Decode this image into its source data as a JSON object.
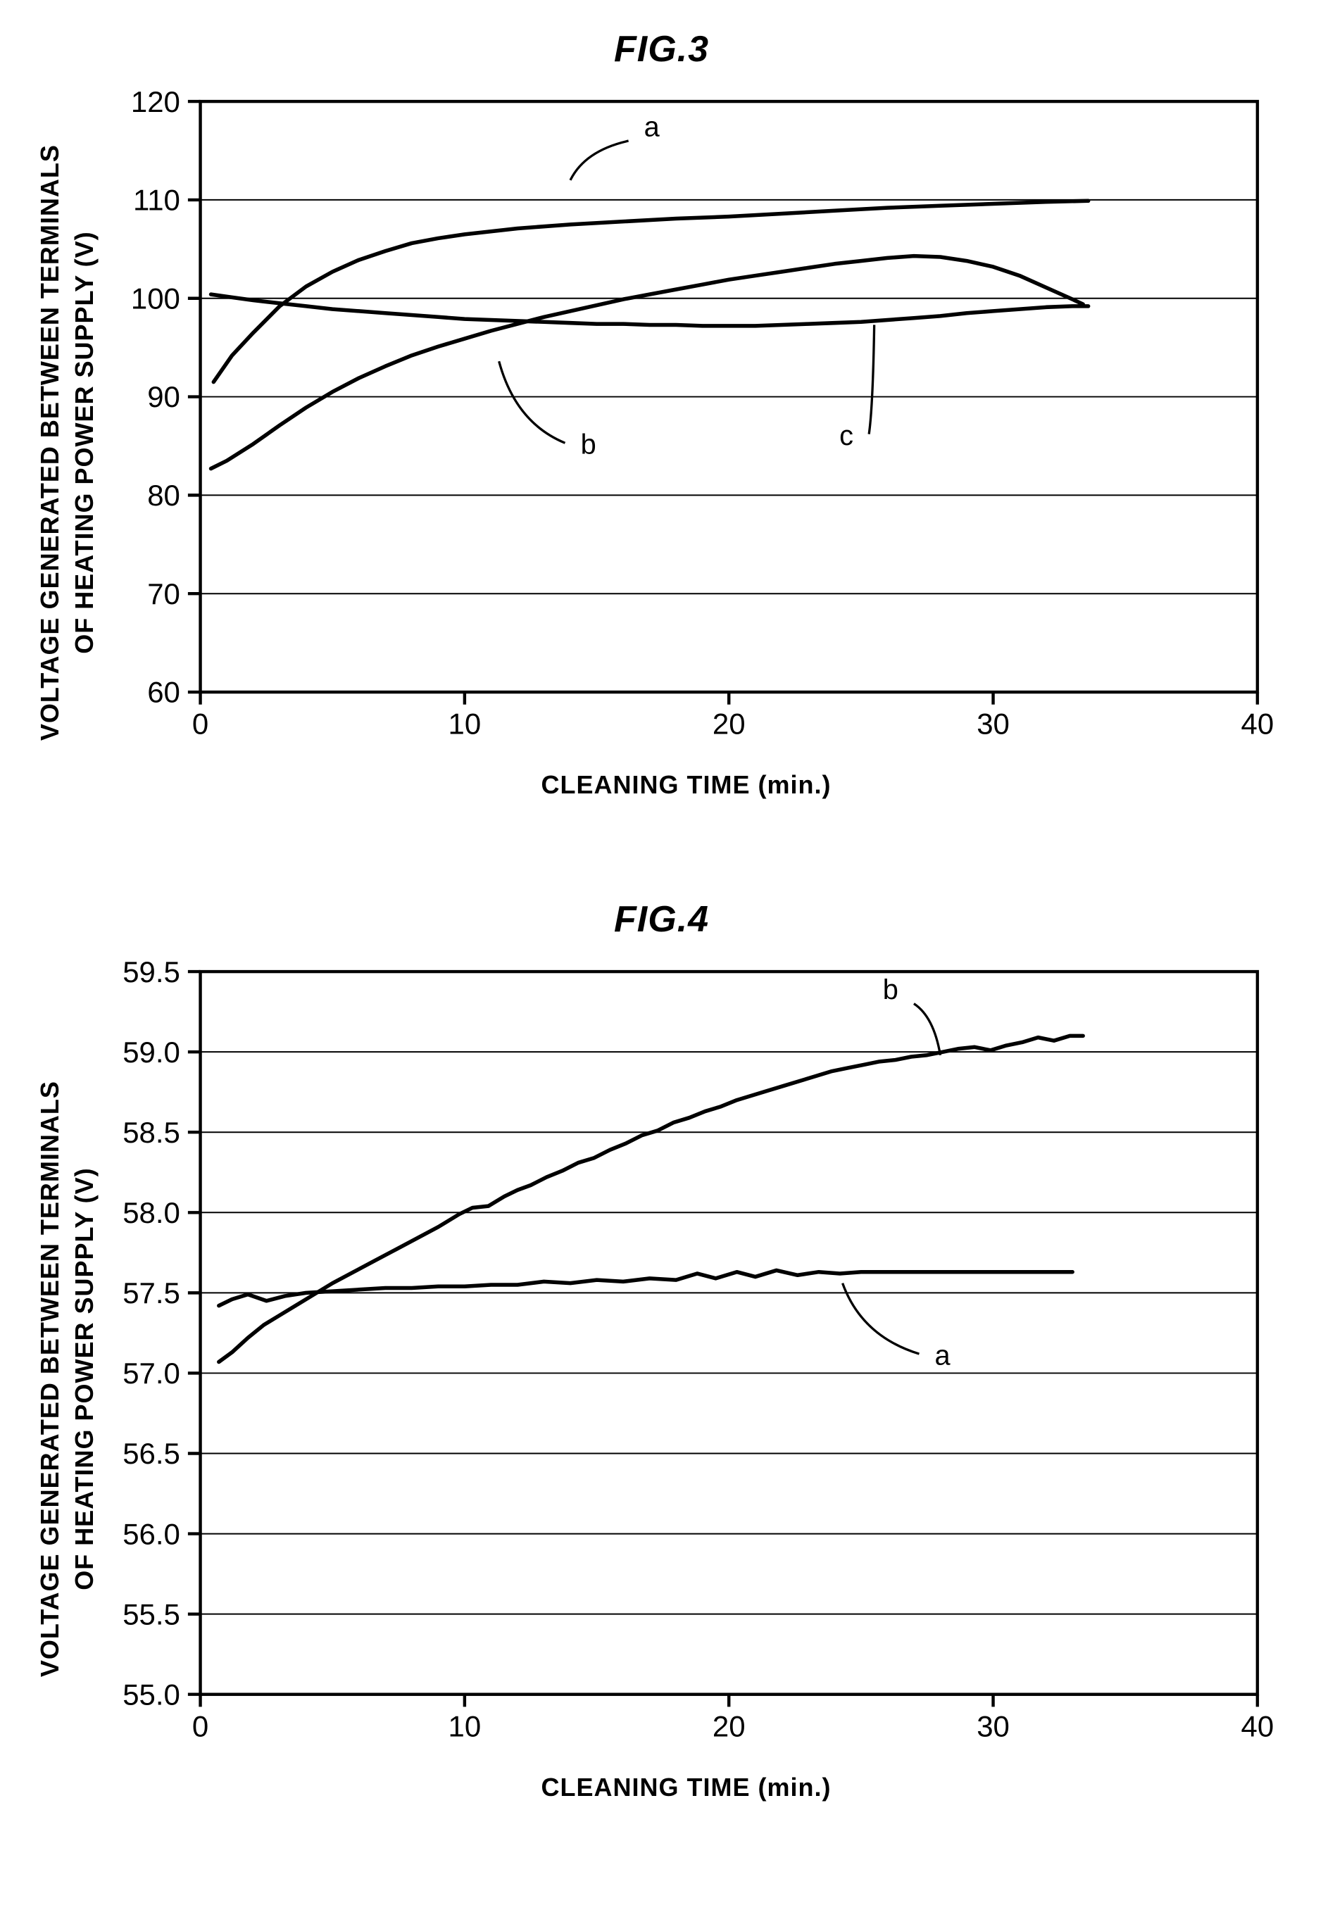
{
  "global": {
    "background_color": "#ffffff",
    "text_color": "#000000",
    "axis_color": "#000000",
    "grid_color": "#000000",
    "title_fontsize": 52,
    "label_fontsize": 36,
    "tick_fontsize": 38,
    "series_label_fontsize": 36,
    "axis_line_width": 4,
    "grid_line_width": 1.8,
    "series_line_width": 5
  },
  "fig3": {
    "type": "line",
    "title": "FIG.3",
    "xlabel": "CLEANING TIME (min.)",
    "ylabel_line1": "VOLTAGE GENERATED BETWEEN TERMINALS",
    "ylabel_line2": "OF HEATING POWER SUPPLY (V)",
    "xlim": [
      0,
      40
    ],
    "ylim": [
      60,
      120
    ],
    "xticks": [
      0,
      10,
      20,
      30,
      40
    ],
    "yticks": [
      60,
      70,
      80,
      90,
      100,
      110,
      120
    ],
    "plot_aspect_w": 1360,
    "plot_aspect_h": 760,
    "series": {
      "a": {
        "label": "a",
        "color": "#000000",
        "annot": {
          "px": 14,
          "py": 112,
          "tx": 16.2,
          "ty": 116
        },
        "points": [
          [
            0.5,
            91.5
          ],
          [
            1.2,
            94.2
          ],
          [
            2,
            96.5
          ],
          [
            3,
            99.2
          ],
          [
            4,
            101.2
          ],
          [
            5,
            102.7
          ],
          [
            6,
            103.9
          ],
          [
            7,
            104.8
          ],
          [
            8,
            105.6
          ],
          [
            9,
            106.1
          ],
          [
            10,
            106.5
          ],
          [
            12,
            107.1
          ],
          [
            14,
            107.5
          ],
          [
            16,
            107.8
          ],
          [
            18,
            108.1
          ],
          [
            20,
            108.3
          ],
          [
            22,
            108.6
          ],
          [
            24,
            108.9
          ],
          [
            26,
            109.2
          ],
          [
            28,
            109.4
          ],
          [
            30,
            109.6
          ],
          [
            32,
            109.8
          ],
          [
            33.6,
            109.9
          ]
        ]
      },
      "b": {
        "label": "b",
        "color": "#000000",
        "annot": {
          "px": 11.3,
          "py": 93.6,
          "tx": 13.8,
          "ty": 85.3
        },
        "points": [
          [
            0.4,
            82.7
          ],
          [
            1,
            83.5
          ],
          [
            2,
            85.2
          ],
          [
            3,
            87.1
          ],
          [
            4,
            88.9
          ],
          [
            5,
            90.5
          ],
          [
            6,
            91.9
          ],
          [
            7,
            93.1
          ],
          [
            8,
            94.2
          ],
          [
            9,
            95.1
          ],
          [
            10,
            95.9
          ],
          [
            11,
            96.7
          ],
          [
            12,
            97.4
          ],
          [
            13,
            98.1
          ],
          [
            14,
            98.7
          ],
          [
            15,
            99.3
          ],
          [
            16,
            99.9
          ],
          [
            17,
            100.4
          ],
          [
            18,
            100.9
          ],
          [
            19,
            101.4
          ],
          [
            20,
            101.9
          ],
          [
            21,
            102.3
          ],
          [
            22,
            102.7
          ],
          [
            23,
            103.1
          ],
          [
            24,
            103.5
          ],
          [
            25,
            103.8
          ],
          [
            26,
            104.1
          ],
          [
            27,
            104.3
          ],
          [
            28,
            104.2
          ],
          [
            29,
            103.8
          ],
          [
            30,
            103.2
          ],
          [
            31,
            102.3
          ],
          [
            32,
            101.1
          ],
          [
            33,
            99.9
          ],
          [
            33.4,
            99.4
          ]
        ]
      },
      "c": {
        "label": "c",
        "color": "#000000",
        "annot": {
          "px": 25.5,
          "py": 97.3,
          "tx": 25.3,
          "ty": 86.2
        },
        "points": [
          [
            0.4,
            100.4
          ],
          [
            1.2,
            100.1
          ],
          [
            2,
            99.8
          ],
          [
            3,
            99.5
          ],
          [
            4,
            99.2
          ],
          [
            5,
            98.9
          ],
          [
            6,
            98.7
          ],
          [
            7,
            98.5
          ],
          [
            8,
            98.3
          ],
          [
            9,
            98.1
          ],
          [
            10,
            97.9
          ],
          [
            11,
            97.8
          ],
          [
            12,
            97.7
          ],
          [
            13,
            97.6
          ],
          [
            14,
            97.5
          ],
          [
            15,
            97.4
          ],
          [
            16,
            97.4
          ],
          [
            17,
            97.3
          ],
          [
            18,
            97.3
          ],
          [
            19,
            97.2
          ],
          [
            20,
            97.2
          ],
          [
            21,
            97.2
          ],
          [
            22,
            97.3
          ],
          [
            23,
            97.4
          ],
          [
            24,
            97.5
          ],
          [
            25,
            97.6
          ],
          [
            26,
            97.8
          ],
          [
            27,
            98.0
          ],
          [
            28,
            98.2
          ],
          [
            29,
            98.5
          ],
          [
            30,
            98.7
          ],
          [
            31,
            98.9
          ],
          [
            32,
            99.1
          ],
          [
            33,
            99.2
          ],
          [
            33.6,
            99.2
          ]
        ]
      }
    }
  },
  "fig4": {
    "type": "line",
    "title": "FIG.4",
    "xlabel": "CLEANING TIME (min.)",
    "ylabel_line1": "VOLTAGE GENERATED BETWEEN TERMINALS",
    "ylabel_line2": "OF HEATING POWER SUPPLY (V)",
    "xlim": [
      0,
      40
    ],
    "ylim": [
      55.0,
      59.5
    ],
    "xticks": [
      0,
      10,
      20,
      30,
      40
    ],
    "yticks": [
      55.0,
      55.5,
      56.0,
      56.5,
      57.0,
      57.5,
      58.0,
      58.5,
      59.0,
      59.5
    ],
    "ytick_decimals": 1,
    "plot_aspect_w": 1360,
    "plot_aspect_h": 930,
    "series": {
      "a": {
        "label": "a",
        "color": "#000000",
        "annot": {
          "px": 24.3,
          "py": 57.56,
          "tx": 27.2,
          "ty": 57.12
        },
        "points": [
          [
            0.7,
            57.42
          ],
          [
            1.2,
            57.46
          ],
          [
            1.8,
            57.49
          ],
          [
            2.5,
            57.45
          ],
          [
            3.2,
            57.48
          ],
          [
            4,
            57.5
          ],
          [
            5,
            57.51
          ],
          [
            6,
            57.52
          ],
          [
            7,
            57.53
          ],
          [
            8,
            57.53
          ],
          [
            9,
            57.54
          ],
          [
            10,
            57.54
          ],
          [
            11,
            57.55
          ],
          [
            12,
            57.55
          ],
          [
            13,
            57.57
          ],
          [
            14,
            57.56
          ],
          [
            15,
            57.58
          ],
          [
            16,
            57.57
          ],
          [
            17,
            57.59
          ],
          [
            18,
            57.58
          ],
          [
            18.8,
            57.62
          ],
          [
            19.5,
            57.59
          ],
          [
            20.3,
            57.63
          ],
          [
            21,
            57.6
          ],
          [
            21.8,
            57.64
          ],
          [
            22.6,
            57.61
          ],
          [
            23.4,
            57.63
          ],
          [
            24.2,
            57.62
          ],
          [
            25,
            57.63
          ],
          [
            26,
            57.63
          ],
          [
            27,
            57.63
          ],
          [
            28,
            57.63
          ],
          [
            29,
            57.63
          ],
          [
            30,
            57.63
          ],
          [
            31,
            57.63
          ],
          [
            32,
            57.63
          ],
          [
            33,
            57.63
          ]
        ]
      },
      "b": {
        "label": "b",
        "color": "#000000",
        "annot": {
          "px": 28,
          "py": 58.98,
          "tx": 27.0,
          "ty": 59.3
        },
        "points": [
          [
            0.7,
            57.07
          ],
          [
            1.2,
            57.13
          ],
          [
            1.8,
            57.22
          ],
          [
            2.4,
            57.3
          ],
          [
            3,
            57.36
          ],
          [
            3.6,
            57.42
          ],
          [
            4.2,
            57.48
          ],
          [
            5,
            57.56
          ],
          [
            5.8,
            57.63
          ],
          [
            6.6,
            57.7
          ],
          [
            7.4,
            57.77
          ],
          [
            8.2,
            57.84
          ],
          [
            9,
            57.91
          ],
          [
            9.4,
            57.95
          ],
          [
            9.8,
            57.99
          ],
          [
            10.3,
            58.03
          ],
          [
            10.9,
            58.04
          ],
          [
            11.5,
            58.1
          ],
          [
            12,
            58.14
          ],
          [
            12.5,
            58.17
          ],
          [
            13.1,
            58.22
          ],
          [
            13.7,
            58.26
          ],
          [
            14.3,
            58.31
          ],
          [
            14.9,
            58.34
          ],
          [
            15.5,
            58.39
          ],
          [
            16.1,
            58.43
          ],
          [
            16.7,
            58.48
          ],
          [
            17.3,
            58.51
          ],
          [
            17.9,
            58.56
          ],
          [
            18.5,
            58.59
          ],
          [
            19.1,
            58.63
          ],
          [
            19.7,
            58.66
          ],
          [
            20.3,
            58.7
          ],
          [
            20.9,
            58.73
          ],
          [
            21.5,
            58.76
          ],
          [
            22.1,
            58.79
          ],
          [
            22.7,
            58.82
          ],
          [
            23.3,
            58.85
          ],
          [
            23.9,
            58.88
          ],
          [
            24.5,
            58.9
          ],
          [
            25.1,
            58.92
          ],
          [
            25.7,
            58.94
          ],
          [
            26.3,
            58.95
          ],
          [
            26.9,
            58.97
          ],
          [
            27.5,
            58.98
          ],
          [
            28.1,
            59.0
          ],
          [
            28.7,
            59.02
          ],
          [
            29.3,
            59.03
          ],
          [
            29.9,
            59.01
          ],
          [
            30.5,
            59.04
          ],
          [
            31.1,
            59.06
          ],
          [
            31.7,
            59.09
          ],
          [
            32.3,
            59.07
          ],
          [
            32.9,
            59.1
          ],
          [
            33.4,
            59.1
          ]
        ]
      }
    }
  }
}
